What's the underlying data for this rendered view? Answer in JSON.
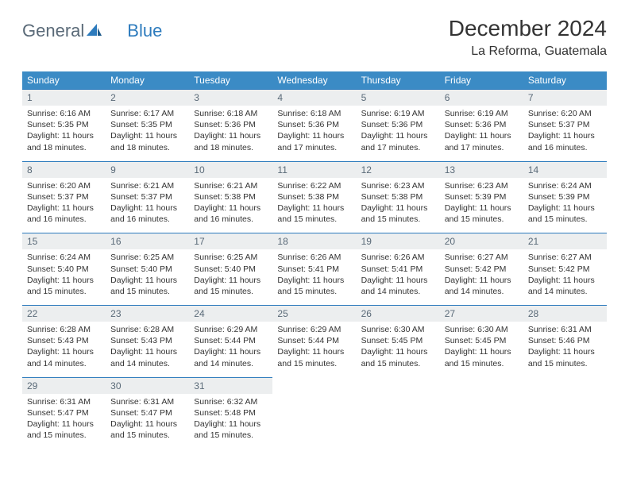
{
  "logo": {
    "general": "General",
    "blue": "Blue"
  },
  "title": "December 2024",
  "location": "La Reforma, Guatemala",
  "colors": {
    "header_bg": "#3b8bc5",
    "daynum_bg": "#eceeef",
    "daynum_border": "#2d7bbd",
    "text": "#333333",
    "logo_gray": "#5a6a78",
    "logo_blue": "#2d7bbd"
  },
  "day_headers": [
    "Sunday",
    "Monday",
    "Tuesday",
    "Wednesday",
    "Thursday",
    "Friday",
    "Saturday"
  ],
  "weeks": [
    [
      {
        "n": "1",
        "sr": "6:16 AM",
        "ss": "5:35 PM",
        "dl": "11 hours and 18 minutes."
      },
      {
        "n": "2",
        "sr": "6:17 AM",
        "ss": "5:35 PM",
        "dl": "11 hours and 18 minutes."
      },
      {
        "n": "3",
        "sr": "6:18 AM",
        "ss": "5:36 PM",
        "dl": "11 hours and 18 minutes."
      },
      {
        "n": "4",
        "sr": "6:18 AM",
        "ss": "5:36 PM",
        "dl": "11 hours and 17 minutes."
      },
      {
        "n": "5",
        "sr": "6:19 AM",
        "ss": "5:36 PM",
        "dl": "11 hours and 17 minutes."
      },
      {
        "n": "6",
        "sr": "6:19 AM",
        "ss": "5:36 PM",
        "dl": "11 hours and 17 minutes."
      },
      {
        "n": "7",
        "sr": "6:20 AM",
        "ss": "5:37 PM",
        "dl": "11 hours and 16 minutes."
      }
    ],
    [
      {
        "n": "8",
        "sr": "6:20 AM",
        "ss": "5:37 PM",
        "dl": "11 hours and 16 minutes."
      },
      {
        "n": "9",
        "sr": "6:21 AM",
        "ss": "5:37 PM",
        "dl": "11 hours and 16 minutes."
      },
      {
        "n": "10",
        "sr": "6:21 AM",
        "ss": "5:38 PM",
        "dl": "11 hours and 16 minutes."
      },
      {
        "n": "11",
        "sr": "6:22 AM",
        "ss": "5:38 PM",
        "dl": "11 hours and 15 minutes."
      },
      {
        "n": "12",
        "sr": "6:23 AM",
        "ss": "5:38 PM",
        "dl": "11 hours and 15 minutes."
      },
      {
        "n": "13",
        "sr": "6:23 AM",
        "ss": "5:39 PM",
        "dl": "11 hours and 15 minutes."
      },
      {
        "n": "14",
        "sr": "6:24 AM",
        "ss": "5:39 PM",
        "dl": "11 hours and 15 minutes."
      }
    ],
    [
      {
        "n": "15",
        "sr": "6:24 AM",
        "ss": "5:40 PM",
        "dl": "11 hours and 15 minutes."
      },
      {
        "n": "16",
        "sr": "6:25 AM",
        "ss": "5:40 PM",
        "dl": "11 hours and 15 minutes."
      },
      {
        "n": "17",
        "sr": "6:25 AM",
        "ss": "5:40 PM",
        "dl": "11 hours and 15 minutes."
      },
      {
        "n": "18",
        "sr": "6:26 AM",
        "ss": "5:41 PM",
        "dl": "11 hours and 15 minutes."
      },
      {
        "n": "19",
        "sr": "6:26 AM",
        "ss": "5:41 PM",
        "dl": "11 hours and 14 minutes."
      },
      {
        "n": "20",
        "sr": "6:27 AM",
        "ss": "5:42 PM",
        "dl": "11 hours and 14 minutes."
      },
      {
        "n": "21",
        "sr": "6:27 AM",
        "ss": "5:42 PM",
        "dl": "11 hours and 14 minutes."
      }
    ],
    [
      {
        "n": "22",
        "sr": "6:28 AM",
        "ss": "5:43 PM",
        "dl": "11 hours and 14 minutes."
      },
      {
        "n": "23",
        "sr": "6:28 AM",
        "ss": "5:43 PM",
        "dl": "11 hours and 14 minutes."
      },
      {
        "n": "24",
        "sr": "6:29 AM",
        "ss": "5:44 PM",
        "dl": "11 hours and 14 minutes."
      },
      {
        "n": "25",
        "sr": "6:29 AM",
        "ss": "5:44 PM",
        "dl": "11 hours and 15 minutes."
      },
      {
        "n": "26",
        "sr": "6:30 AM",
        "ss": "5:45 PM",
        "dl": "11 hours and 15 minutes."
      },
      {
        "n": "27",
        "sr": "6:30 AM",
        "ss": "5:45 PM",
        "dl": "11 hours and 15 minutes."
      },
      {
        "n": "28",
        "sr": "6:31 AM",
        "ss": "5:46 PM",
        "dl": "11 hours and 15 minutes."
      }
    ],
    [
      {
        "n": "29",
        "sr": "6:31 AM",
        "ss": "5:47 PM",
        "dl": "11 hours and 15 minutes."
      },
      {
        "n": "30",
        "sr": "6:31 AM",
        "ss": "5:47 PM",
        "dl": "11 hours and 15 minutes."
      },
      {
        "n": "31",
        "sr": "6:32 AM",
        "ss": "5:48 PM",
        "dl": "11 hours and 15 minutes."
      },
      null,
      null,
      null,
      null
    ]
  ],
  "labels": {
    "sunrise": "Sunrise:",
    "sunset": "Sunset:",
    "daylight": "Daylight:"
  }
}
